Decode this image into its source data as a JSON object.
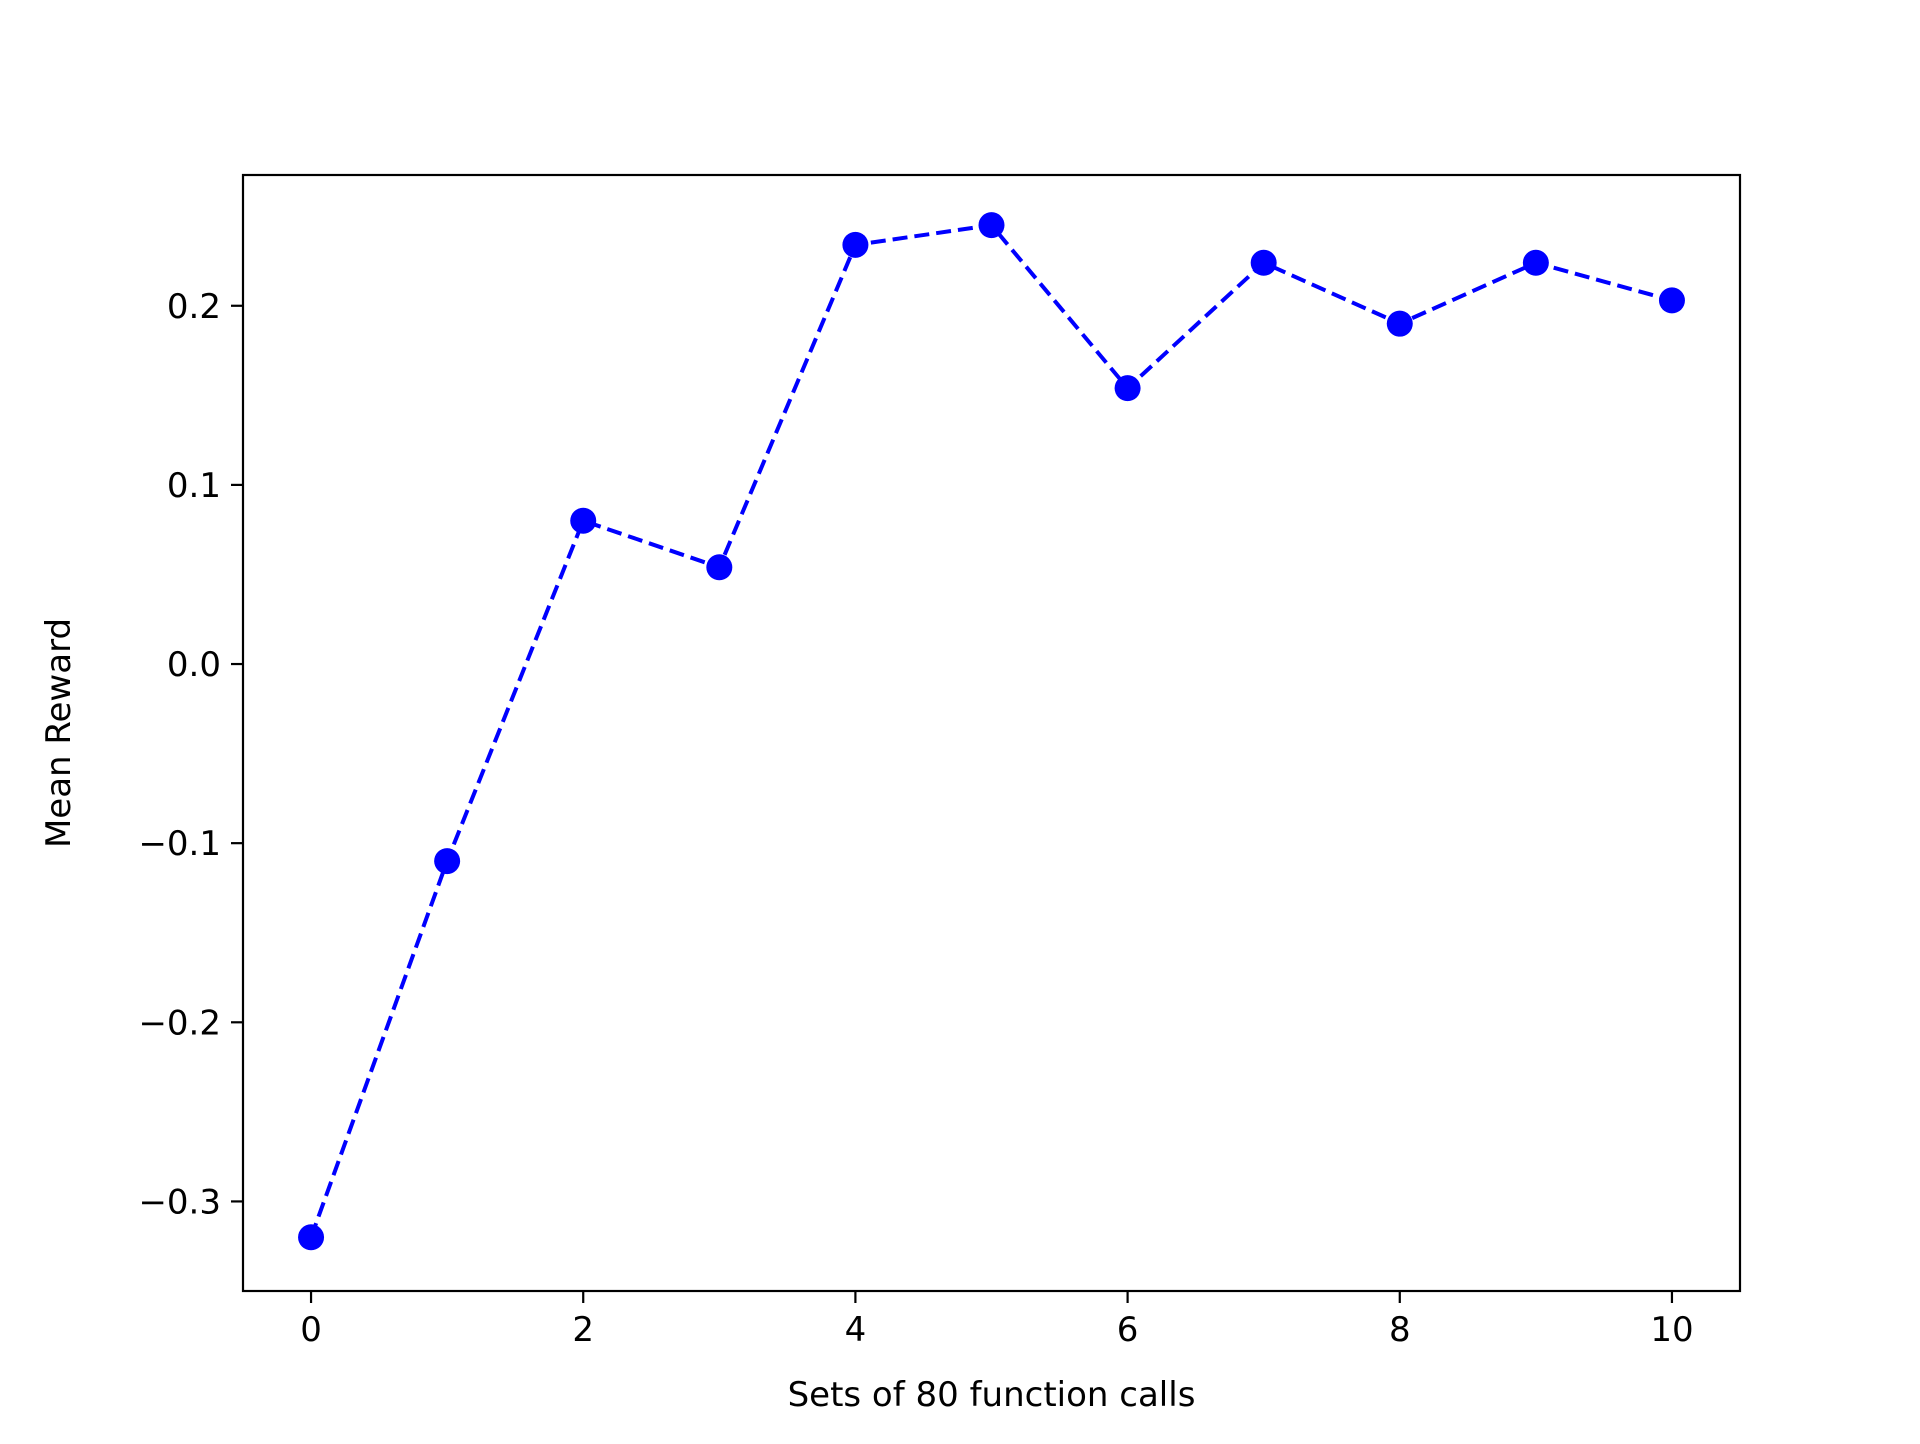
{
  "chart_data": {
    "type": "line",
    "title": "",
    "xlabel": "Sets of 80 function calls",
    "ylabel": "Mean Reward",
    "xlim": [
      -0.5,
      10.5
    ],
    "ylim": [
      -0.35,
      0.273
    ],
    "xticks": [
      0,
      2,
      4,
      6,
      8,
      10
    ],
    "xtick_labels": [
      "0",
      "2",
      "4",
      "6",
      "8",
      "10"
    ],
    "yticks": [
      -0.3,
      -0.2,
      -0.1,
      0.0,
      0.1,
      0.2
    ],
    "ytick_labels": [
      "−0.3",
      "−0.2",
      "−0.1",
      "0.0",
      "0.1",
      "0.2"
    ],
    "grid": false,
    "legend": "none",
    "series": [
      {
        "color": "#0000ff",
        "line_style": "dashed",
        "marker": "circle",
        "x": [
          0,
          1,
          2,
          3,
          4,
          5,
          6,
          7,
          8,
          9,
          10
        ],
        "y": [
          -0.32,
          -0.11,
          0.08,
          0.054,
          0.234,
          0.245,
          0.154,
          0.224,
          0.19,
          0.224,
          0.203
        ]
      }
    ]
  }
}
